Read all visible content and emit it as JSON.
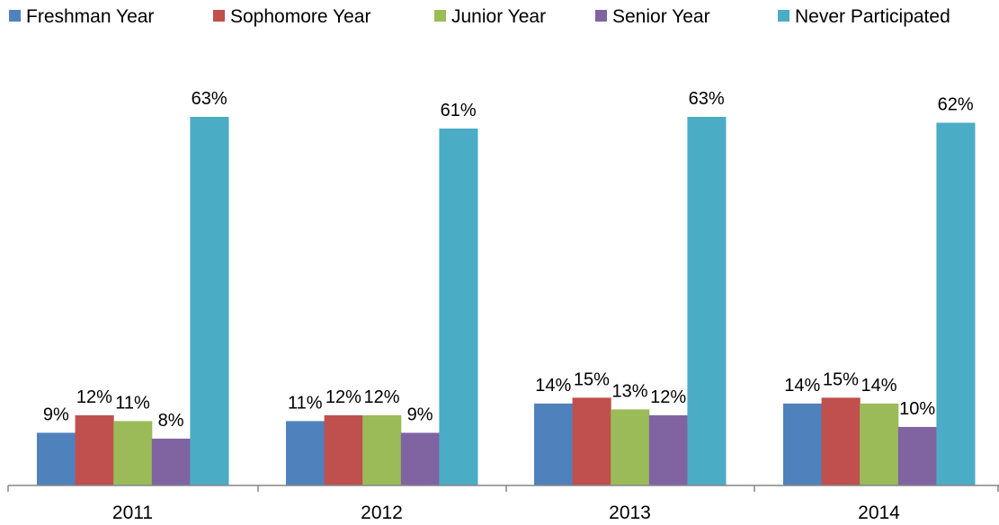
{
  "chart_data": {
    "type": "bar",
    "categories": [
      "2011",
      "2012",
      "2013",
      "2014"
    ],
    "series": [
      {
        "name": "Freshman Year",
        "color": "#4F81BD",
        "values": [
          9,
          11,
          14,
          14
        ],
        "labels": [
          "9%",
          "11%",
          "14%",
          "14%"
        ]
      },
      {
        "name": "Sophomore Year",
        "color": "#C0504D",
        "values": [
          12,
          12,
          15,
          15
        ],
        "labels": [
          "12%",
          "12%",
          "15%",
          "15%"
        ]
      },
      {
        "name": "Junior Year",
        "color": "#9BBB59",
        "values": [
          11,
          12,
          13,
          14
        ],
        "labels": [
          "11%",
          "12%",
          "13%",
          "14%"
        ]
      },
      {
        "name": "Senior Year",
        "color": "#8064A2",
        "values": [
          8,
          9,
          12,
          10
        ],
        "labels": [
          "8%",
          "9%",
          "12%",
          "10%"
        ]
      },
      {
        "name": "Never Participated",
        "color": "#4BACC6",
        "values": [
          63,
          61,
          63,
          62
        ],
        "labels": [
          "63%",
          "61%",
          "63%",
          "62%"
        ]
      }
    ],
    "ylim": [
      0,
      63
    ],
    "grid": false,
    "legend_position": "top-left",
    "title": "",
    "xlabel": "",
    "ylabel": ""
  }
}
